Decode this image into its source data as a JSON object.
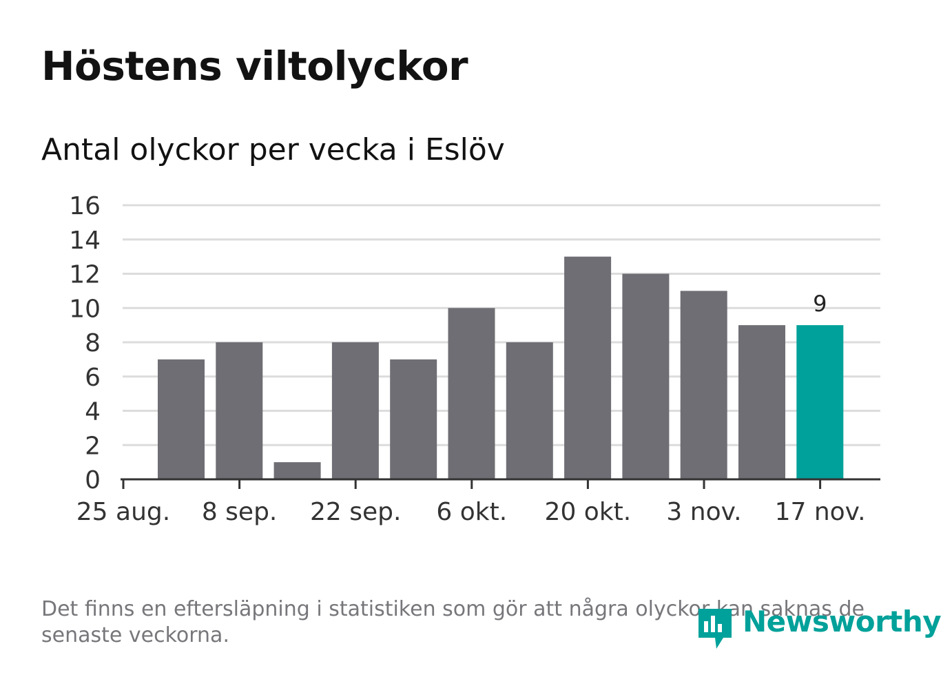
{
  "title": "Höstens viltolyckor",
  "subtitle": "Antal olyckor per vecka i Eslöv",
  "footnote": "Det finns en eftersläpning i statistiken som gör att några olyckor kan saknas de senaste veckorna.",
  "brand": {
    "name": "Newsworthy",
    "color": "#00a19a"
  },
  "colors": {
    "bar": "#6e6e74",
    "highlight": "#00a19a",
    "grid": "#dcdcdc",
    "axis": "#333333"
  },
  "chart_data": {
    "type": "bar",
    "x_tick_labels": [
      "25 aug.",
      "8 sep.",
      "22 sep.",
      "6 okt.",
      "20 okt.",
      "3 nov.",
      "17 nov."
    ],
    "values": [
      7,
      8,
      1,
      8,
      7,
      10,
      8,
      13,
      12,
      11,
      9,
      9
    ],
    "highlight_index": 11,
    "data_labels": [
      {
        "index": 11,
        "text": "9"
      }
    ],
    "y_ticks": [
      0,
      2,
      4,
      6,
      8,
      10,
      12,
      14,
      16
    ],
    "ylim": [
      0,
      16
    ],
    "grid": true,
    "legend": "none"
  }
}
